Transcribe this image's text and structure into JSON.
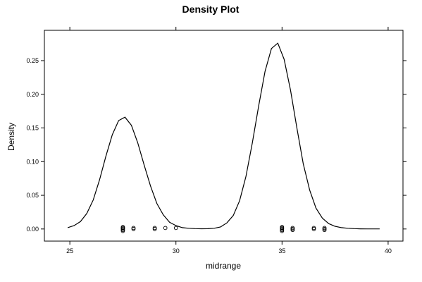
{
  "chart_data": {
    "type": "line",
    "title": "Density Plot",
    "xlabel": "midrange",
    "ylabel": "Density",
    "xlim": [
      23.8,
      40.7
    ],
    "ylim": [
      -0.018,
      0.295
    ],
    "xticks": [
      25,
      30,
      35,
      40
    ],
    "yticks": [
      0.0,
      0.05,
      0.1,
      0.15,
      0.2,
      0.25
    ],
    "xtick_labels": [
      "25",
      "30",
      "35",
      "40"
    ],
    "ytick_labels": [
      "0.00",
      "0.05",
      "0.10",
      "0.15",
      "0.20",
      "0.25"
    ],
    "grid": false,
    "series": [
      {
        "kind": "density-curve",
        "x": [
          24.9,
          25.2,
          25.5,
          25.8,
          26.1,
          26.4,
          26.7,
          27.0,
          27.3,
          27.6,
          27.9,
          28.2,
          28.5,
          28.8,
          29.1,
          29.4,
          29.7,
          30.0,
          30.3,
          30.6,
          30.9,
          31.2,
          31.5,
          31.8,
          32.1,
          32.4,
          32.7,
          33.0,
          33.3,
          33.6,
          33.9,
          34.2,
          34.5,
          34.8,
          35.1,
          35.4,
          35.7,
          36.0,
          36.3,
          36.6,
          36.9,
          37.2,
          37.5,
          37.8,
          38.1,
          38.4,
          38.7,
          39.0,
          39.3,
          39.6
        ],
        "values": [
          0.002,
          0.005,
          0.011,
          0.023,
          0.043,
          0.073,
          0.108,
          0.14,
          0.161,
          0.166,
          0.154,
          0.128,
          0.095,
          0.064,
          0.038,
          0.021,
          0.01,
          0.005,
          0.002,
          0.001,
          0.0005,
          0.0003,
          0.0004,
          0.001,
          0.003,
          0.009,
          0.02,
          0.042,
          0.078,
          0.128,
          0.183,
          0.234,
          0.268,
          0.276,
          0.252,
          0.206,
          0.15,
          0.097,
          0.058,
          0.031,
          0.016,
          0.008,
          0.004,
          0.002,
          0.001,
          0.0005,
          0.0002,
          0.0001,
          0.0001,
          0.0001
        ]
      },
      {
        "kind": "rug-points",
        "x": [
          27.5,
          27.5,
          27.5,
          27.5,
          27.5,
          27.5,
          28.0,
          28.0,
          29.0,
          29.0,
          29.5,
          30.0,
          35.0,
          35.0,
          35.0,
          35.0,
          35.0,
          35.0,
          35.5,
          35.5,
          35.5,
          36.5,
          36.5,
          37.0,
          37.0,
          37.0
        ],
        "values": [
          0.0,
          0.0,
          0.0,
          0.0,
          0.0,
          0.0,
          0.0,
          0.0,
          0.0,
          0.0,
          0.0,
          0.0,
          0.0,
          0.0,
          0.0,
          0.0,
          0.0,
          0.0,
          0.0,
          0.0,
          0.0,
          0.0,
          0.0,
          0.0,
          0.0,
          0.0
        ]
      }
    ]
  }
}
